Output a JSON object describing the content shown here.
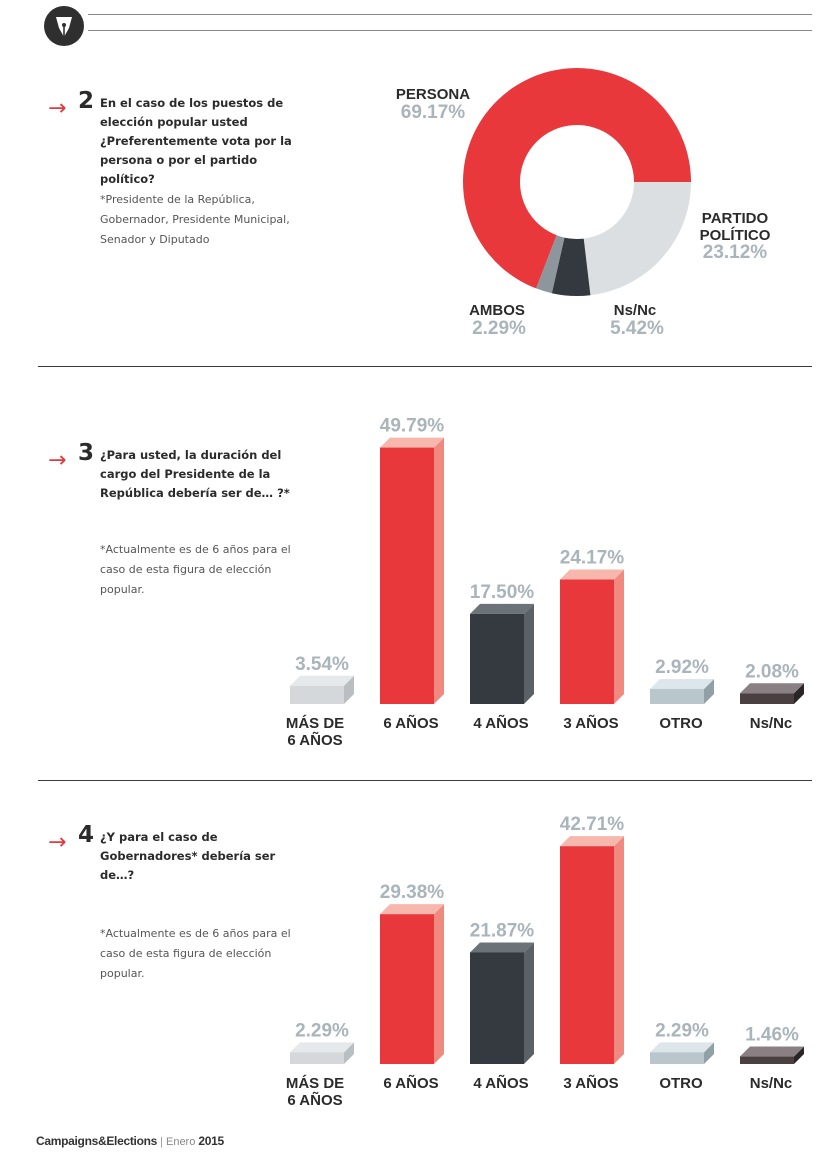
{
  "header": {
    "logo_icon": "pen-nib-icon"
  },
  "colors": {
    "red": "#e8383c",
    "red_light": "#f08a80",
    "dark": "#343a3f",
    "gray_light": "#d9dde0",
    "mid": "#8c969c",
    "pct_gray": "#a9b4bb"
  },
  "questions": [
    {
      "number": "2",
      "arrow": "→",
      "text": "En el caso de los puestos de elección popular usted ¿Preferentemente vota por la persona o por el partido político?",
      "note": "*Presidente de la República, Gobernador, Presidente Municipal, Senador y Diputado"
    },
    {
      "number": "3",
      "arrow": "→",
      "text": "¿Para usted, la duración del cargo del Presidente de la República debería ser de… ?*",
      "note": "*Actualmente es de 6 años para el caso de esta figura de elección popular."
    },
    {
      "number": "4",
      "arrow": "→",
      "text": "¿Y para el caso de Gobernadores* debería ser de…?",
      "note": "*Actualmente es de 6 años para el caso de esta figura de elección popular."
    }
  ],
  "chart_data": [
    {
      "type": "pie",
      "title": "",
      "categories": [
        "PERSONA",
        "PARTIDO POLÍTICO",
        "Ns/Nc",
        "AMBOS"
      ],
      "values": [
        69.17,
        23.12,
        5.42,
        2.29
      ],
      "labels": [
        "69.17%",
        "23.12%",
        "5.42%",
        "2.29%"
      ],
      "colors": [
        "#e8383c",
        "#dcdfe2",
        "#33393e",
        "#8c969c"
      ],
      "donut": true
    },
    {
      "type": "bar",
      "title": "",
      "categories": [
        "MÁS DE 6 AÑOS",
        "6 AÑOS",
        "4 AÑOS",
        "3 AÑOS",
        "OTRO",
        "Ns/Nc"
      ],
      "values": [
        3.54,
        49.79,
        17.5,
        24.17,
        2.92,
        2.08
      ],
      "labels": [
        "3.54%",
        "49.79%",
        "17.50%",
        "24.17%",
        "2.92%",
        "2.08%"
      ],
      "colors": [
        "#d4d8db",
        "#e8383c",
        "#343a3f",
        "#e8383c",
        "#b9c6cc",
        "#4a4042"
      ],
      "ylim": [
        0,
        50
      ]
    },
    {
      "type": "bar",
      "title": "",
      "categories": [
        "MÁS DE 6 AÑOS",
        "6 AÑOS",
        "4 AÑOS",
        "3 AÑOS",
        "OTRO",
        "Ns/Nc"
      ],
      "values": [
        2.29,
        29.38,
        21.87,
        42.71,
        2.29,
        1.46
      ],
      "labels": [
        "2.29%",
        "29.38%",
        "21.87%",
        "42.71%",
        "2.29%",
        "1.46%"
      ],
      "colors": [
        "#d4d8db",
        "#e8383c",
        "#343a3f",
        "#e8383c",
        "#b9c6cc",
        "#4a4042"
      ],
      "ylim": [
        0,
        50
      ]
    }
  ],
  "footer": {
    "brand": "Campaigns&Elections",
    "sep": "|",
    "month": "Enero",
    "year": "2015"
  }
}
